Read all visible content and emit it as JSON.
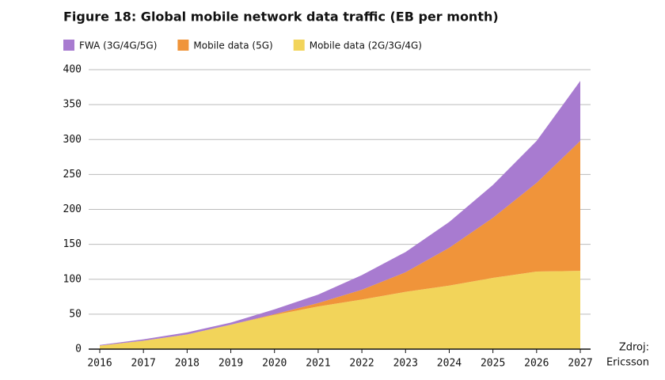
{
  "chart_data": {
    "type": "stacked_area",
    "title": "Figure 18: Global mobile network data traffic (EB per month)",
    "categories": [
      "2016",
      "2017",
      "2018",
      "2019",
      "2020",
      "2021",
      "2022",
      "2023",
      "2024",
      "2025",
      "2026",
      "2027"
    ],
    "series": [
      {
        "name": "FWA (3G/4G/5G)",
        "color": "#a87bd0",
        "values": [
          1,
          2,
          3,
          3,
          7,
          12,
          21,
          29,
          37,
          47,
          60,
          86
        ]
      },
      {
        "name": "Mobile data (5G)",
        "color": "#f0943a",
        "values": [
          0,
          0,
          0,
          0,
          1,
          5,
          14,
          28,
          54,
          86,
          127,
          186
        ]
      },
      {
        "name": "Mobile data (2G/3G/4G)",
        "color": "#f2d45a",
        "values": [
          5,
          12,
          21,
          35,
          49,
          61,
          71,
          82,
          91,
          102,
          111,
          112
        ]
      }
    ],
    "ylim": [
      0,
      400
    ],
    "yticks": [
      0,
      50,
      100,
      150,
      200,
      250,
      300,
      350,
      400
    ],
    "grid": true,
    "source": [
      "Zdroj:",
      "Ericsson"
    ]
  }
}
